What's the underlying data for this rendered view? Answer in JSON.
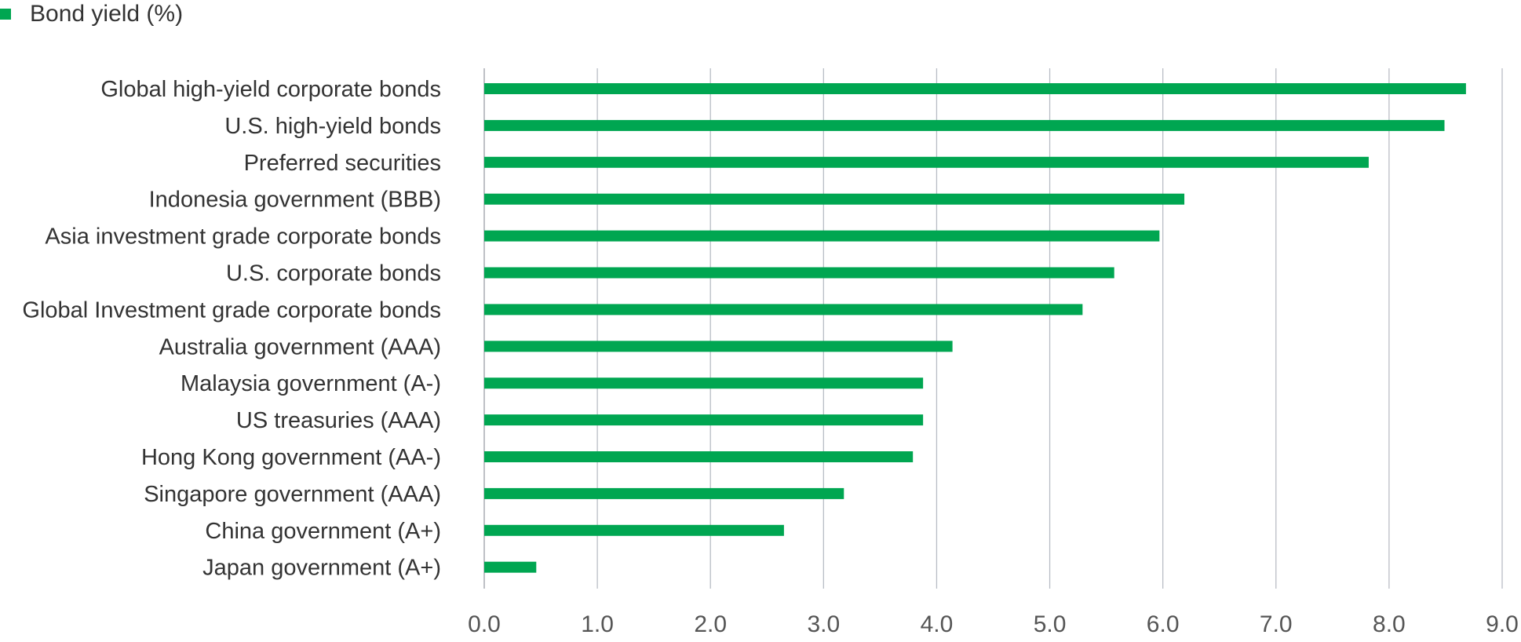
{
  "chart_data": {
    "type": "bar",
    "orientation": "horizontal",
    "categories": [
      "Global high-yield corporate bonds",
      "U.S. high-yield bonds",
      "Preferred securities",
      "Indonesia government (BBB)",
      "Asia investment grade corporate bonds",
      "U.S. corporate bonds",
      "Global Investment grade corporate bonds",
      "Australia government (AAA)",
      "Malaysia government (A-)",
      "US treasuries (AAA)",
      "Hong Kong government (AA-)",
      "Singapore government (AAA)",
      "China government (A+)",
      "Japan government (A+)"
    ],
    "series": [
      {
        "name": "Bond yield (%)",
        "color": "#00a651",
        "values": [
          8.68,
          8.49,
          7.82,
          6.19,
          5.97,
          5.57,
          5.29,
          4.14,
          3.88,
          3.88,
          3.79,
          3.18,
          2.65,
          0.46
        ]
      }
    ],
    "xlim": [
      0,
      9
    ],
    "xticks": [
      "0.0",
      "1.0",
      "2.0",
      "3.0",
      "4.0",
      "5.0",
      "6.0",
      "7.0",
      "8.0",
      "9.0"
    ],
    "grid": true,
    "legend_position": "top-left"
  }
}
